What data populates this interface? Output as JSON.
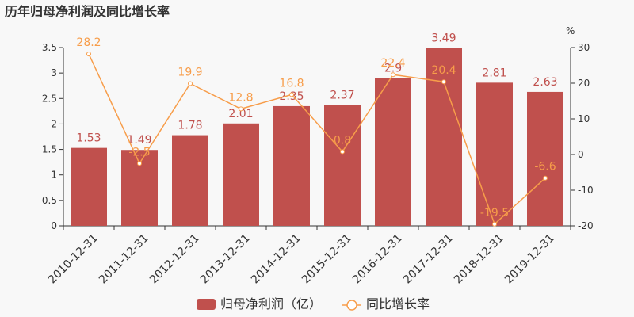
{
  "chart_data": {
    "type": "bar",
    "title": "历年归母净利润及同比增长率",
    "categories": [
      "2010-12-31",
      "2011-12-31",
      "2012-12-31",
      "2013-12-31",
      "2014-12-31",
      "2015-12-31",
      "2016-12-31",
      "2017-12-31",
      "2018-12-31",
      "2019-12-31"
    ],
    "series": [
      {
        "name": "归母净利润（亿）",
        "type": "bar",
        "axis": "left",
        "color": "#c0504d",
        "values": [
          1.53,
          1.49,
          1.78,
          2.01,
          2.35,
          2.37,
          2.9,
          3.49,
          2.81,
          2.63
        ],
        "labels": [
          "1.53",
          "1.49",
          "1.78",
          "2.01",
          "2.35",
          "2.37",
          "2.9",
          "3.49",
          "2.81",
          "2.63"
        ]
      },
      {
        "name": "同比增长率",
        "type": "line",
        "axis": "right",
        "color": "#f79d4a",
        "values": [
          28.2,
          -2.5,
          19.9,
          12.8,
          16.8,
          0.8,
          22.4,
          20.4,
          -19.5,
          -6.6
        ],
        "labels": [
          "28.2",
          "-2.5",
          "19.9",
          "12.8",
          "16.8",
          "0.8",
          "22.4",
          "20.4",
          "-19.5",
          "-6.6"
        ]
      }
    ],
    "y_left": {
      "min": 0,
      "max": 3.5,
      "ticks": [
        "0",
        "0.5",
        "1",
        "1.5",
        "2",
        "2.5",
        "3",
        "3.5"
      ]
    },
    "y_right": {
      "min": -20,
      "max": 30,
      "unit": "%",
      "ticks": [
        "-20",
        "-10",
        "0",
        "10",
        "20",
        "30"
      ]
    },
    "grid": false,
    "legend_position": "bottom"
  }
}
